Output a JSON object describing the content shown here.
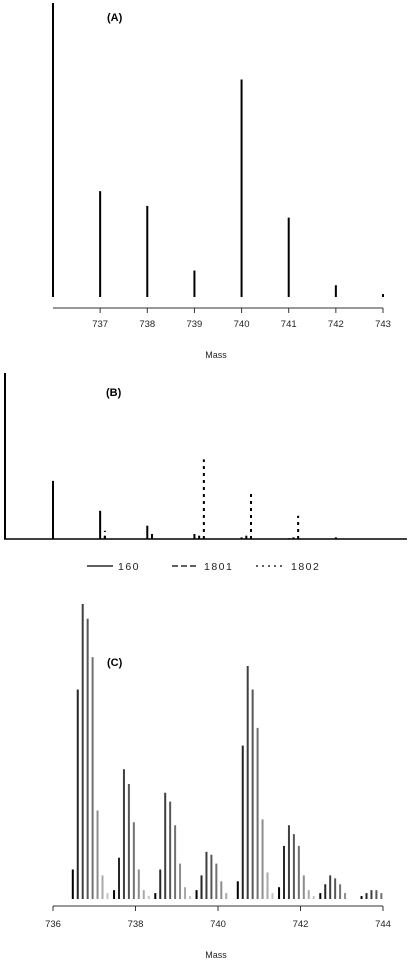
{
  "chart_data": [
    {
      "type": "bar",
      "panel_label": "(A)",
      "xlabel": "Mass",
      "ticks": [
        "737",
        "738",
        "739",
        "740",
        "741",
        "742",
        "743"
      ],
      "ylim": [
        0,
        100
      ],
      "x": [
        736.4,
        737.4,
        738.4,
        739.4,
        740.4,
        741.4,
        742.4,
        743.4
      ],
      "values": [
        100,
        36,
        31,
        9,
        74,
        27,
        4,
        1
      ]
    },
    {
      "type": "bar",
      "panel_label": "(B)",
      "ylim": [
        0,
        100
      ],
      "x_range": [
        735.4,
        743.3
      ],
      "series": [
        {
          "name": "160",
          "style": "solid",
          "x": [
            736.4,
            737.4,
            738.4,
            739.4,
            740.4,
            741.4,
            742.4
          ],
          "values": [
            35,
            17,
            8,
            3,
            1,
            0.5,
            1
          ]
        },
        {
          "name": "1801",
          "style": "dashed",
          "x": [
            737.5,
            738.5,
            739.5,
            740.5,
            741.5
          ],
          "values": [
            2,
            3,
            2,
            2,
            1
          ]
        },
        {
          "name": "1802",
          "style": "dotted",
          "x": [
            737.5,
            739.6,
            740.6,
            741.6
          ],
          "values": [
            5,
            48,
            29,
            14
          ]
        }
      ]
    },
    {
      "type": "bar",
      "panel_label": "(C)",
      "xlabel": "Mass",
      "ticks": [
        "736",
        "738",
        "740",
        "742",
        "744"
      ],
      "xlim": [
        736,
        744
      ],
      "ylim": [
        0,
        100
      ],
      "groups": [
        {
          "x": [
            736.48,
            736.6,
            736.72,
            736.84,
            736.96,
            737.08,
            737.2,
            737.32
          ],
          "values": [
            10,
            71,
            100,
            95,
            82,
            30,
            8,
            2
          ]
        },
        {
          "x": [
            737.48,
            737.6,
            737.72,
            737.84,
            737.96,
            738.08,
            738.2,
            738.32
          ],
          "values": [
            3,
            14,
            44,
            39,
            26,
            10,
            3,
            1
          ]
        },
        {
          "x": [
            738.48,
            738.6,
            738.72,
            738.84,
            738.96,
            739.08,
            739.2,
            739.32
          ],
          "values": [
            2,
            10,
            36,
            33,
            25,
            12,
            4,
            1
          ]
        },
        {
          "x": [
            739.48,
            739.6,
            739.72,
            739.84,
            739.96,
            740.08,
            740.2
          ],
          "values": [
            3,
            8,
            16,
            15,
            12,
            6,
            2
          ]
        },
        {
          "x": [
            740.48,
            740.6,
            740.72,
            740.84,
            740.96,
            741.08,
            741.2,
            741.32
          ],
          "values": [
            6,
            52,
            79,
            71,
            58,
            27,
            9,
            2
          ]
        },
        {
          "x": [
            741.48,
            741.6,
            741.72,
            741.84,
            741.96,
            742.08,
            742.2,
            742.32
          ],
          "values": [
            4,
            18,
            25,
            22,
            18,
            8,
            3,
            1
          ]
        },
        {
          "x": [
            742.48,
            742.6,
            742.72,
            742.84,
            742.96,
            743.08
          ],
          "values": [
            2,
            5,
            8,
            7,
            5,
            2
          ]
        },
        {
          "x": [
            743.48,
            743.6,
            743.72,
            743.84,
            743.96
          ],
          "values": [
            1,
            2,
            3,
            3,
            2
          ]
        }
      ]
    }
  ]
}
